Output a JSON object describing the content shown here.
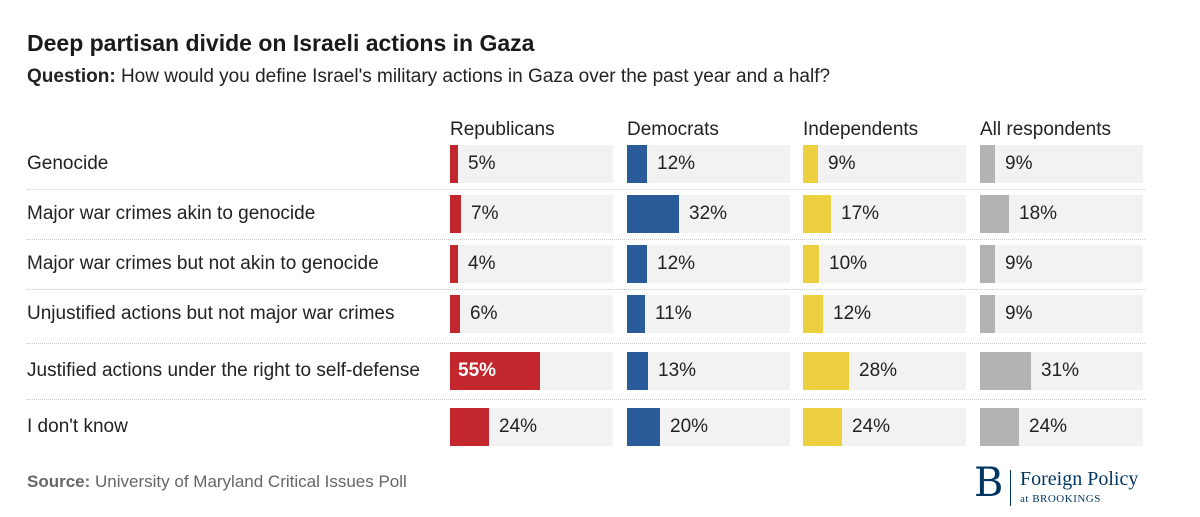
{
  "chart_data": {
    "type": "bar",
    "title": "Deep partisan divide on Israeli actions in Gaza",
    "question_label": "Question:",
    "question_text": "How would you define Israel's military actions in Gaza over the past year and a half?",
    "categories": [
      "Genocide",
      "Major war crimes akin to genocide",
      "Major war crimes but not akin to genocide",
      "Unjustified actions but not major war crimes",
      "Justified actions under the right to self-defense",
      "I don't know"
    ],
    "series": [
      {
        "name": "Republicans",
        "color": "#c1272d",
        "values": [
          5,
          7,
          4,
          6,
          55,
          24
        ]
      },
      {
        "name": "Democrats",
        "color": "#2a5c9a",
        "values": [
          12,
          32,
          12,
          11,
          13,
          20
        ]
      },
      {
        "name": "Independents",
        "color": "#ecd03f",
        "values": [
          9,
          17,
          10,
          12,
          28,
          24
        ]
      },
      {
        "name": "All respondents",
        "color": "#b3b3b3",
        "values": [
          9,
          18,
          9,
          9,
          31,
          24
        ]
      }
    ],
    "xlim": [
      0,
      100
    ],
    "unit": "%",
    "source_label": "Source:",
    "source_text": "University of Maryland Critical Issues Poll"
  },
  "logo": {
    "letter": "B",
    "name": "Foreign Policy",
    "sub": "at BROOKINGS"
  }
}
